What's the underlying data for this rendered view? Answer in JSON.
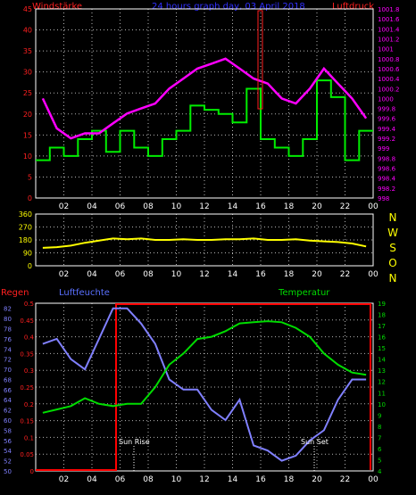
{
  "top": {
    "left_label": "Windstärke",
    "center_label": "24 hours graph day, 03 April 2018",
    "right_label": "Luftdruck",
    "left_ticks": [
      "0",
      "5",
      "10",
      "15",
      "20",
      "25",
      "30",
      "35",
      "40",
      "45"
    ],
    "right_ticks": [
      "998",
      "998.2",
      "998.4",
      "998.6",
      "998.8",
      "999",
      "999.2",
      "999.4",
      "999.6",
      "999.8",
      "1000",
      "1000.2",
      "1000.4",
      "1000.6",
      "1000.8",
      "1001",
      "1001.2",
      "1001.4",
      "1001.6",
      "1001.8"
    ],
    "x_ticks": [
      "02",
      "04",
      "06",
      "08",
      "10",
      "12",
      "14",
      "16",
      "18",
      "20",
      "22",
      "00"
    ]
  },
  "mid": {
    "left_ticks": [
      "0",
      "90",
      "180",
      "270",
      "360"
    ],
    "directions": [
      "N",
      "W",
      "S",
      "O",
      "N"
    ],
    "x_ticks": [
      "02",
      "04",
      "06",
      "08",
      "10",
      "12",
      "14",
      "16",
      "18",
      "20",
      "22",
      "00"
    ]
  },
  "bottom": {
    "left_label": "Regen",
    "center_label": "Luftfeuchte",
    "right_label": "Temperatur",
    "rain_ticks": [
      "0",
      "0.05",
      "0.1",
      "0.15",
      "0.2",
      "0.25",
      "0.3",
      "0.35",
      "0.4",
      "0.45",
      "0.5"
    ],
    "hum_ticks": [
      "50",
      "52",
      "54",
      "56",
      "58",
      "60",
      "62",
      "64",
      "66",
      "68",
      "70",
      "72",
      "74",
      "76",
      "78",
      "80",
      "82"
    ],
    "temp_ticks": [
      "4",
      "5",
      "6",
      "7",
      "8",
      "9",
      "10",
      "11",
      "12",
      "13",
      "14",
      "15",
      "16",
      "17",
      "18",
      "19"
    ],
    "x_ticks": [
      "02",
      "04",
      "06",
      "08",
      "10",
      "12",
      "14",
      "16",
      "18",
      "20",
      "22",
      "00"
    ],
    "sunrise_label": "Sun Rise",
    "sunset_label": "Sun Set"
  },
  "colors": {
    "wind": "#00ee00",
    "pressure": "#ff00ff",
    "direction": "#ffff00",
    "humidity": "#8080ff",
    "temperature": "#00dd00",
    "rain": "#ff0000",
    "grid": "#ffffff"
  },
  "chart_data": [
    {
      "type": "line",
      "title": "24 hours graph day, 03 April 2018",
      "x": [
        "01",
        "02",
        "03",
        "04",
        "05",
        "06",
        "07",
        "08",
        "09",
        "10",
        "11",
        "12",
        "13",
        "14",
        "15",
        "16",
        "17",
        "18",
        "19",
        "20",
        "21",
        "22",
        "23",
        "00"
      ],
      "series": [
        {
          "name": "Windstärke",
          "axis": "left",
          "ylim": [
            0,
            45
          ],
          "values": [
            9,
            12,
            10,
            14,
            16,
            11,
            16,
            12,
            10,
            14,
            16,
            22,
            21,
            20,
            18,
            26,
            14,
            12,
            10,
            14,
            28,
            24,
            9,
            16
          ]
        },
        {
          "name": "Luftdruck",
          "axis": "right",
          "ylim": [
            998,
            1001.8
          ],
          "values": [
            1000.0,
            999.4,
            999.2,
            999.3,
            999.3,
            999.5,
            999.7,
            999.8,
            999.9,
            1000.2,
            1000.4,
            1000.6,
            1000.7,
            1000.8,
            1000.6,
            1000.4,
            1000.3,
            1000.0,
            999.9,
            1000.2,
            1000.6,
            1000.3,
            1000.0,
            999.6
          ]
        }
      ]
    },
    {
      "type": "line",
      "x": [
        "01",
        "02",
        "03",
        "04",
        "05",
        "06",
        "07",
        "08",
        "09",
        "10",
        "11",
        "12",
        "13",
        "14",
        "15",
        "16",
        "17",
        "18",
        "19",
        "20",
        "21",
        "22",
        "23",
        "00"
      ],
      "series": [
        {
          "name": "direction",
          "ylim": [
            0,
            360
          ],
          "values": [
            125,
            130,
            140,
            160,
            175,
            190,
            185,
            190,
            180,
            180,
            185,
            180,
            180,
            185,
            185,
            190,
            180,
            180,
            185,
            175,
            170,
            165,
            155,
            135
          ]
        }
      ]
    },
    {
      "type": "line",
      "x": [
        "01",
        "02",
        "03",
        "04",
        "05",
        "06",
        "07",
        "08",
        "09",
        "10",
        "11",
        "12",
        "13",
        "14",
        "15",
        "16",
        "17",
        "18",
        "19",
        "20",
        "21",
        "22",
        "23",
        "00"
      ],
      "series": [
        {
          "name": "Luftfeuchte",
          "axis": "left2",
          "ylim": [
            50,
            83
          ],
          "values": [
            75,
            76,
            72,
            70,
            76,
            82,
            82,
            79,
            75,
            68,
            66,
            66,
            62,
            60,
            64,
            55,
            54,
            52,
            53,
            56,
            58,
            64,
            68,
            68
          ]
        },
        {
          "name": "Temperatur",
          "axis": "right",
          "ylim": [
            4,
            19
          ],
          "values": [
            9.2,
            9.5,
            9.8,
            10.5,
            10.0,
            9.8,
            10.0,
            10.0,
            11.5,
            13.5,
            14.5,
            15.8,
            16.0,
            16.5,
            17.2,
            17.3,
            17.4,
            17.3,
            16.8,
            16.0,
            14.5,
            13.5,
            12.8,
            12.6
          ]
        },
        {
          "name": "Regen",
          "axis": "left",
          "ylim": [
            0,
            0.5
          ],
          "values": [
            0,
            0,
            0,
            0,
            0,
            0.5,
            0.5,
            0.5,
            0.5,
            0.5,
            0.5,
            0.5,
            0.5,
            0.5,
            0.5,
            0.5,
            0.5,
            0.5,
            0.5,
            0.5,
            0.5,
            0.5,
            0.5,
            0
          ]
        }
      ]
    }
  ]
}
